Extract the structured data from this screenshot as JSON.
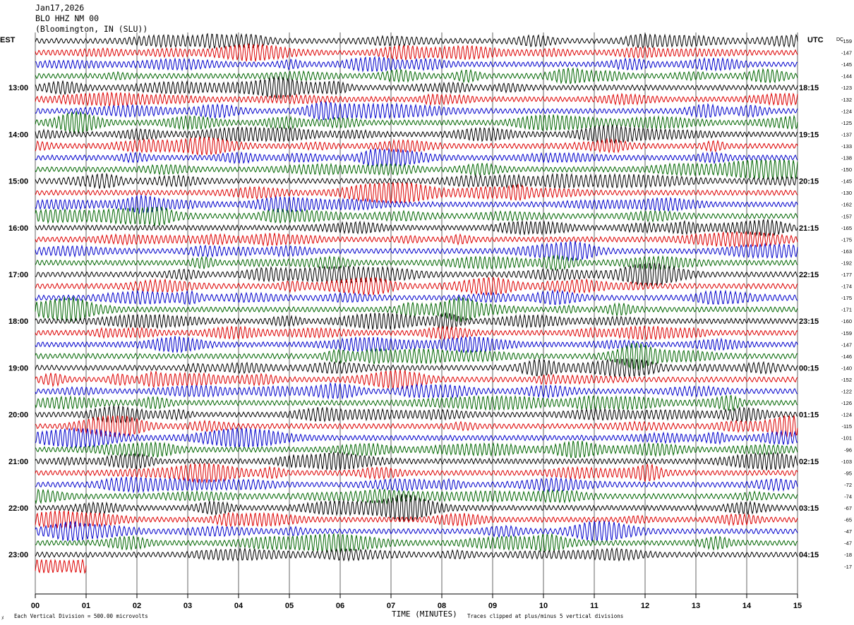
{
  "header": {
    "date": "Jan17,2026",
    "station": "BLO HHZ NM 00",
    "location": "(Bloomington, IN (SLU))"
  },
  "left_zone": "EST",
  "right_zone": "UTC",
  "dc_label": "DC",
  "footer": {
    "scale_note": "Each Vertical Division =  500.00 microvolts",
    "axis_title": "TIME (MINUTES)",
    "clip_note": "Traces clipped at plus/minus 5 vertical divisions"
  },
  "chart_data": {
    "type": "line",
    "title": "",
    "xlabel": "TIME (MINUTES)",
    "ylabel": "",
    "xlim": [
      0,
      15
    ],
    "x_ticks": [
      "00",
      "01",
      "02",
      "03",
      "04",
      "05",
      "06",
      "07",
      "08",
      "09",
      "10",
      "11",
      "12",
      "13",
      "14",
      "15"
    ],
    "trace_colors": [
      "#000000",
      "#dd0000",
      "#0000cc",
      "#006600"
    ],
    "left_hour_labels": [
      {
        "trace": 4,
        "label": "13:00"
      },
      {
        "trace": 8,
        "label": "14:00"
      },
      {
        "trace": 12,
        "label": "15:00"
      },
      {
        "trace": 16,
        "label": "16:00"
      },
      {
        "trace": 20,
        "label": "17:00"
      },
      {
        "trace": 24,
        "label": "18:00"
      },
      {
        "trace": 28,
        "label": "19:00"
      },
      {
        "trace": 32,
        "label": "20:00"
      },
      {
        "trace": 36,
        "label": "21:00"
      },
      {
        "trace": 40,
        "label": "22:00"
      },
      {
        "trace": 44,
        "label": "23:00"
      }
    ],
    "right_hour_labels": [
      {
        "trace": 4,
        "label": "18:15"
      },
      {
        "trace": 8,
        "label": "19:15"
      },
      {
        "trace": 12,
        "label": "20:15"
      },
      {
        "trace": 16,
        "label": "21:15"
      },
      {
        "trace": 20,
        "label": "22:15"
      },
      {
        "trace": 24,
        "label": "23:15"
      },
      {
        "trace": 28,
        "label": "00:15"
      },
      {
        "trace": 32,
        "label": "01:15"
      },
      {
        "trace": 36,
        "label": "02:15"
      },
      {
        "trace": 40,
        "label": "03:15"
      },
      {
        "trace": 44,
        "label": "04:15"
      }
    ],
    "dc_offsets": [
      -159,
      -147,
      -145,
      -144,
      -123,
      -132,
      -124,
      -125,
      -137,
      -133,
      -138,
      -150,
      -145,
      -130,
      -162,
      -157,
      -165,
      -175,
      -163,
      -192,
      -177,
      -174,
      -175,
      -171,
      -160,
      -159,
      -147,
      -146,
      -140,
      -152,
      -122,
      -126,
      -124,
      -115,
      -101,
      -96,
      -103,
      -95,
      -72,
      -74,
      -67,
      -65,
      -47,
      -47,
      -18,
      -17
    ],
    "last_trace_end_minute": 1.0
  }
}
